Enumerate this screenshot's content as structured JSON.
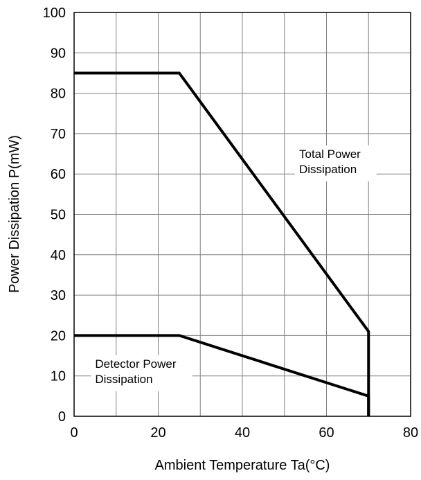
{
  "chart_data": {
    "type": "line",
    "title": "",
    "xlabel": "Ambient Temperature Ta(°C)",
    "ylabel": "Power Dissipation P(mW)",
    "xlim": [
      0,
      80
    ],
    "ylim": [
      0,
      100
    ],
    "x_ticks": [
      0,
      20,
      40,
      60,
      80
    ],
    "y_ticks": [
      0,
      10,
      20,
      30,
      40,
      50,
      60,
      70,
      80,
      90,
      100
    ],
    "x_tick_labels": [
      "0",
      "20",
      "40",
      "60",
      "80"
    ],
    "y_tick_labels": [
      "0",
      "10",
      "20",
      "30",
      "40",
      "50",
      "60",
      "70",
      "80",
      "90",
      "100"
    ],
    "grid": true,
    "legend": "none",
    "line_color": "#000000",
    "series": [
      {
        "name": "Total Power Dissipation",
        "x": [
          0,
          25,
          70,
          70
        ],
        "y": [
          85,
          85,
          21,
          0
        ]
      },
      {
        "name": "Detector Power Dissipation",
        "x": [
          0,
          25,
          70,
          70
        ],
        "y": [
          20,
          20,
          5,
          0
        ]
      }
    ],
    "annotations": [
      {
        "lines": [
          "Total Power",
          "Dissipation"
        ],
        "x": 53.5,
        "y": 64
      },
      {
        "lines": [
          "Detector Power",
          "Dissipation"
        ],
        "x": 5,
        "y": 12
      }
    ]
  }
}
